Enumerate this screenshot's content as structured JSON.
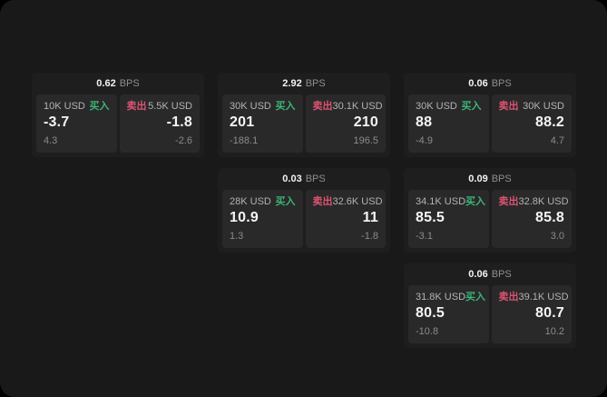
{
  "window": {
    "outside_background": "#000000",
    "background": "#19191a"
  },
  "labels": {
    "bps_unit": "BPS",
    "buy": "买入",
    "sell": "卖出"
  },
  "colors": {
    "buy_green": "#3cb474",
    "sell_red": "#dc5370",
    "card_background": "#1e1e1f",
    "panel_background": "#29292a"
  },
  "cards": [
    {
      "row": 1,
      "col": 1,
      "bps": "0.62",
      "buy": {
        "amount": "10K USD",
        "value": "-3.7",
        "delta": "4.3"
      },
      "sell": {
        "amount": "5.5K USD",
        "value": "-1.8",
        "delta": "-2.6"
      }
    },
    {
      "row": 1,
      "col": 2,
      "bps": "2.92",
      "buy": {
        "amount": "30K USD",
        "value": "201",
        "delta": "-188.1"
      },
      "sell": {
        "amount": "30.1K USD",
        "value": "210",
        "delta": "196.5"
      }
    },
    {
      "row": 1,
      "col": 3,
      "bps": "0.06",
      "buy": {
        "amount": "30K USD",
        "value": "88",
        "delta": "-4.9"
      },
      "sell": {
        "amount": "30K USD",
        "value": "88.2",
        "delta": "4.7"
      }
    },
    {
      "row": 2,
      "col": 2,
      "bps": "0.03",
      "buy": {
        "amount": "28K USD",
        "value": "10.9",
        "delta": "1.3"
      },
      "sell": {
        "amount": "32.6K USD",
        "value": "11",
        "delta": "-1.8"
      }
    },
    {
      "row": 2,
      "col": 3,
      "bps": "0.09",
      "buy": {
        "amount": "34.1K USD",
        "value": "85.5",
        "delta": "-3.1"
      },
      "sell": {
        "amount": "32.8K USD",
        "value": "85.8",
        "delta": "3.0"
      }
    },
    {
      "row": 3,
      "col": 3,
      "bps": "0.06",
      "buy": {
        "amount": "31.8K USD",
        "value": "80.5",
        "delta": "-10.8"
      },
      "sell": {
        "amount": "39.1K USD",
        "value": "80.7",
        "delta": "10.2"
      }
    }
  ]
}
